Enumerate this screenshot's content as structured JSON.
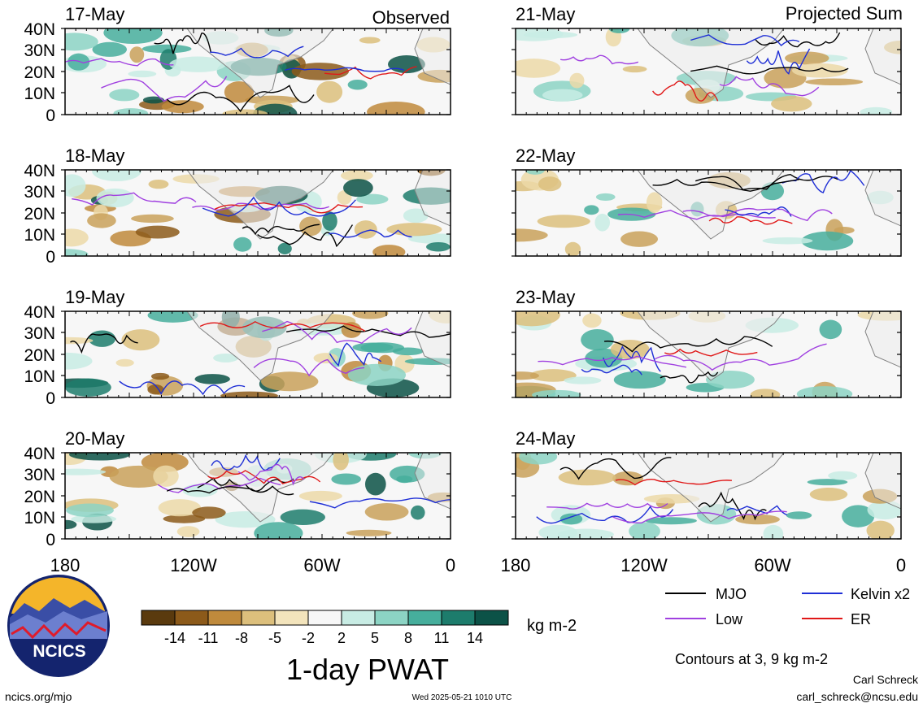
{
  "header": {
    "left_label": "Observed",
    "right_label": "Projected Sum"
  },
  "panels_left": [
    {
      "date": "17-May"
    },
    {
      "date": "18-May"
    },
    {
      "date": "19-May"
    },
    {
      "date": "20-May"
    }
  ],
  "panels_right": [
    {
      "date": "21-May"
    },
    {
      "date": "22-May"
    },
    {
      "date": "23-May"
    },
    {
      "date": "24-May"
    }
  ],
  "lat_labels": [
    "40N",
    "30N",
    "20N",
    "10N",
    "0"
  ],
  "lon_labels": [
    "180",
    "120W",
    "60W",
    "0"
  ],
  "legend": {
    "items": [
      {
        "label": "MJO",
        "color": "#000000"
      },
      {
        "label": "Kelvin x2",
        "color": "#1f2fd6"
      },
      {
        "label": "Low",
        "color": "#a040e0"
      },
      {
        "label": "ER",
        "color": "#e01818"
      }
    ],
    "contours_note": "Contours at 3, 9 kg m-2"
  },
  "colorbar": {
    "ticks": [
      "-14",
      "-11",
      "-8",
      "-5",
      "-2",
      "2",
      "5",
      "8",
      "11",
      "14"
    ],
    "colors": [
      "#5a3a0e",
      "#8c5a1a",
      "#bf8a3c",
      "#dcbf7c",
      "#f3e4bc",
      "#f7f7f7",
      "#c8ece4",
      "#8cd4c4",
      "#46ae9c",
      "#1d7c6c",
      "#0c5247"
    ],
    "unit": "kg m-2",
    "title": "1-day PWAT"
  },
  "logo": {
    "text": "NCICS"
  },
  "footer": {
    "url": "ncics.org/mjo",
    "timestamp": "Wed 2025-05-21 1010 UTC",
    "author": "Carl Schreck",
    "email": "carl_schreck@ncsu.edu"
  }
}
